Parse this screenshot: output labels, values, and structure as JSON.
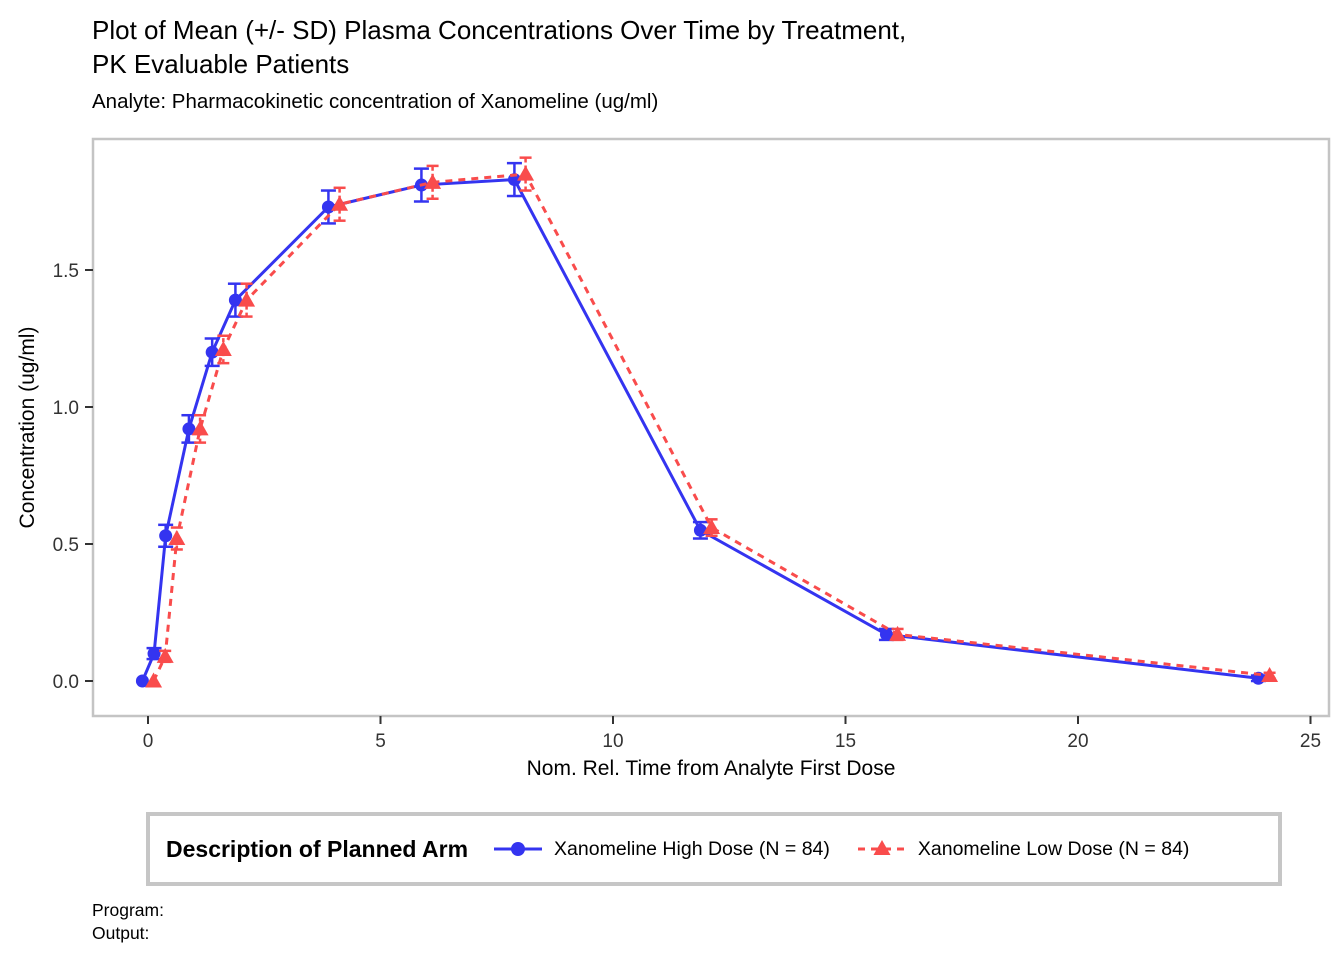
{
  "header": {
    "title_line1": "Plot of Mean (+/- SD) Plasma Concentrations Over Time by Treatment,",
    "title_line2": "PK Evaluable Patients",
    "subtitle": "Analyte: Pharmacokinetic concentration of Xanomeline (ug/ml)"
  },
  "chart_data": {
    "type": "line",
    "title": "Plot of Mean (+/- SD) Plasma Concentrations Over Time by Treatment, PK Evaluable Patients",
    "subtitle": "Analyte: Pharmacokinetic concentration of Xanomeline (ug/ml)",
    "xlabel": "Nom. Rel. Time from Analyte First Dose",
    "ylabel": "Concentration (ug/ml)",
    "xlim": [
      -1.2,
      25.4
    ],
    "ylim": [
      -0.13,
      1.98
    ],
    "x_ticks": [
      0,
      5,
      10,
      15,
      20,
      25
    ],
    "y_ticks": [
      0.0,
      0.5,
      1.0,
      1.5
    ],
    "grid": false,
    "legend_position": "bottom",
    "error_bars": "standard deviation",
    "x": [
      0,
      0.25,
      0.5,
      1,
      1.5,
      2,
      4,
      6,
      8,
      12,
      16,
      24
    ],
    "series": [
      {
        "name": "Xanomeline High Dose (N = 84)",
        "color": "#3434f0",
        "marker": "circle",
        "line": "solid",
        "x_offset": -0.12,
        "values": [
          0.0,
          0.1,
          0.53,
          0.92,
          1.2,
          1.39,
          1.73,
          1.81,
          1.83,
          0.55,
          0.17,
          0.01
        ],
        "sd": [
          0.0,
          0.02,
          0.04,
          0.05,
          0.05,
          0.06,
          0.06,
          0.06,
          0.06,
          0.03,
          0.02,
          0.01
        ]
      },
      {
        "name": "Xanomeline Low Dose (N = 84)",
        "color": "#f94c4c",
        "marker": "triangle",
        "line": "dashed",
        "x_offset": 0.12,
        "values": [
          0.0,
          0.09,
          0.52,
          0.92,
          1.21,
          1.39,
          1.74,
          1.82,
          1.85,
          0.56,
          0.17,
          0.02
        ],
        "sd": [
          0.0,
          0.02,
          0.04,
          0.05,
          0.05,
          0.06,
          0.06,
          0.06,
          0.06,
          0.03,
          0.02,
          0.01
        ]
      }
    ]
  },
  "legend": {
    "title": "Description of Planned Arm",
    "entries": [
      {
        "label": "Xanomeline High Dose (N = 84)",
        "color": "#3434f0",
        "marker": "circle",
        "line": "solid"
      },
      {
        "label": "Xanomeline Low Dose (N = 84)",
        "color": "#f94c4c",
        "marker": "triangle",
        "line": "dashed"
      }
    ]
  },
  "footer": {
    "program_label": "Program:",
    "output_label": "Output:"
  },
  "colors": {
    "high_dose": "#3434f0",
    "low_dose": "#f94c4c",
    "panel_border": "#c4c4c4",
    "legend_border": "#c6c6c6",
    "tick_mark": "#333333",
    "text": "#000000"
  }
}
